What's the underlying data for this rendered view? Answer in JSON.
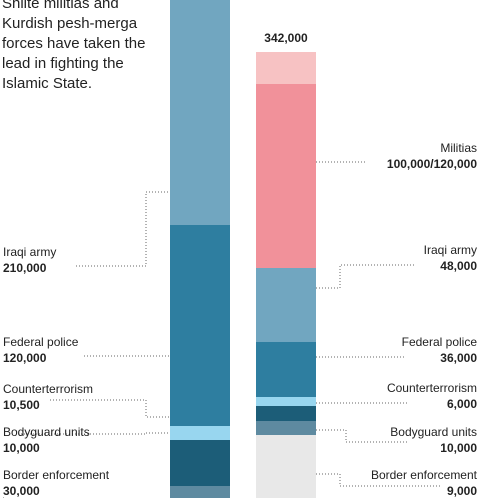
{
  "intro_text": "Shiite militias and Kurdish pesh-merga forces have taken the lead in fighting the Islamic State.",
  "chart_data": {
    "type": "bar",
    "stacked": true,
    "bars": [
      {
        "total_label": "",
        "segments": [
          {
            "label": "Border enforcement",
            "value_text": "30,000",
            "value": 30000,
            "color": "#5e8aa0"
          },
          {
            "label": "Bodyguard units",
            "value_text": "10,000",
            "value": 10000,
            "color": "#1c5d78"
          },
          {
            "label": "Counterterrorism",
            "value_text": "10,500",
            "value": 10500,
            "color": "#98d6ef"
          },
          {
            "label": "Federal police",
            "value_text": "120,000",
            "value": 120000,
            "color": "#2e7ea0"
          },
          {
            "label": "Iraqi army",
            "value_text": "210,000",
            "value": 210000,
            "color": "#2e7ea0"
          },
          {
            "label": "",
            "value_text": "",
            "value": null,
            "color": "#71a6c0"
          }
        ]
      },
      {
        "total_label": "342,000",
        "segments": [
          {
            "label": "Border enforcement",
            "value_text": "9,000",
            "value": 9000,
            "color": "#e8e8e8"
          },
          {
            "label": "Bodyguard units",
            "value_text": "10,000",
            "value": 10000,
            "color": "#5e8aa0"
          },
          {
            "label": "Counterterrorism",
            "value_text": "6,000",
            "value": 6000,
            "color": "#1c5d78"
          },
          {
            "label": "",
            "value_text": "",
            "value": null,
            "color": "#98d6ef"
          },
          {
            "label": "Federal police",
            "value_text": "36,000",
            "value": 36000,
            "color": "#2e7ea0"
          },
          {
            "label": "Iraqi army",
            "value_text": "48,000",
            "value": 48000,
            "color": "#71a6c0"
          },
          {
            "label": "Militias",
            "value_text": "100,000/120,000",
            "value": [
              100000,
              120000
            ],
            "color": "#f1919a"
          },
          {
            "label": "",
            "value_text": "",
            "value": null,
            "color": "#f7c2c3"
          }
        ]
      }
    ]
  }
}
